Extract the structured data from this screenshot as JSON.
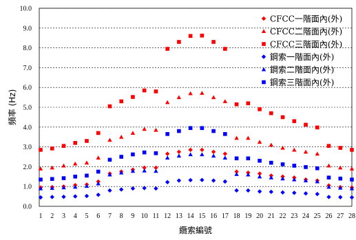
{
  "chart_data": {
    "type": "scatter",
    "title": "",
    "xlabel": "纜索編號",
    "ylabel": "頻率 (Hz)",
    "xlim": [
      1,
      28
    ],
    "ylim": [
      0,
      10
    ],
    "x_ticks": [
      "1",
      "2",
      "3",
      "4",
      "5",
      "6",
      "7",
      "8",
      "9",
      "10",
      "11",
      "12",
      "13",
      "14",
      "15",
      "16",
      "17",
      "18",
      "19",
      "20",
      "21",
      "22",
      "23",
      "24",
      "25",
      "26",
      "27",
      "28"
    ],
    "y_ticks": [
      "0.0",
      "1.0",
      "2.0",
      "3.0",
      "4.0",
      "5.0",
      "6.0",
      "7.0",
      "8.0",
      "9.0",
      "10.0"
    ],
    "legend_position": "top-right",
    "x": [
      1,
      2,
      3,
      4,
      5,
      6,
      7,
      8,
      9,
      10,
      11,
      12,
      13,
      14,
      15,
      16,
      17,
      18,
      19,
      20,
      21,
      22,
      23,
      24,
      25,
      26,
      27,
      28
    ],
    "series": [
      {
        "name": "CFCC一階面內(外)",
        "marker": "diamond",
        "color": "#ff0000",
        "values": [
          0.95,
          0.97,
          1.0,
          1.07,
          1.1,
          1.25,
          1.65,
          1.75,
          1.85,
          1.95,
          1.95,
          2.65,
          2.75,
          2.85,
          2.85,
          2.75,
          2.65,
          1.75,
          1.7,
          1.65,
          1.55,
          1.5,
          1.45,
          1.35,
          1.3,
          1.05,
          0.97,
          0.95
        ]
      },
      {
        "name": "CFCC二階面內(外)",
        "marker": "triangle",
        "color": "#ff0000",
        "values": [
          1.9,
          1.95,
          2.05,
          2.15,
          2.2,
          2.45,
          3.35,
          3.5,
          3.7,
          3.9,
          3.85,
          5.25,
          5.5,
          5.7,
          5.72,
          5.5,
          5.3,
          3.45,
          3.45,
          3.25,
          3.1,
          2.95,
          2.85,
          2.75,
          2.65,
          2.05,
          1.95,
          1.9
        ]
      },
      {
        "name": "CFCC三階面內(外)",
        "marker": "square",
        "color": "#ff0000",
        "values": [
          2.85,
          2.92,
          3.05,
          3.2,
          3.3,
          3.7,
          5.05,
          5.3,
          5.52,
          5.85,
          5.8,
          7.95,
          8.3,
          8.6,
          8.62,
          8.3,
          7.95,
          5.15,
          5.2,
          4.9,
          4.7,
          4.5,
          4.3,
          4.12,
          3.98,
          3.05,
          2.95,
          2.85
        ]
      },
      {
        "name": "鋼索一階面內(外)",
        "marker": "diamond",
        "color": "#0000ff",
        "values": [
          0.45,
          0.47,
          0.48,
          0.5,
          0.52,
          0.58,
          0.8,
          0.85,
          0.9,
          0.92,
          0.9,
          1.22,
          1.3,
          1.32,
          1.33,
          1.3,
          1.25,
          0.8,
          0.8,
          0.75,
          0.73,
          0.7,
          0.68,
          0.65,
          0.62,
          0.47,
          0.46,
          0.45
        ]
      },
      {
        "name": "鋼索二階面內(外)",
        "marker": "triangle",
        "color": "#0000ff",
        "values": [
          0.9,
          0.92,
          0.95,
          0.98,
          1.02,
          1.15,
          1.6,
          1.7,
          1.78,
          1.8,
          1.78,
          2.45,
          2.55,
          2.62,
          2.62,
          2.55,
          2.45,
          1.62,
          1.6,
          1.5,
          1.45,
          1.4,
          1.35,
          1.3,
          1.25,
          0.98,
          0.93,
          0.9
        ]
      },
      {
        "name": "鋼索三階面內(外)",
        "marker": "square",
        "color": "#0000ff",
        "values": [
          1.35,
          1.38,
          1.42,
          1.5,
          1.55,
          1.75,
          2.35,
          2.5,
          2.62,
          2.72,
          2.68,
          3.65,
          3.8,
          3.95,
          3.95,
          3.8,
          3.65,
          2.42,
          2.42,
          2.3,
          2.2,
          2.12,
          2.05,
          1.98,
          1.92,
          1.45,
          1.4,
          1.35
        ]
      }
    ]
  }
}
